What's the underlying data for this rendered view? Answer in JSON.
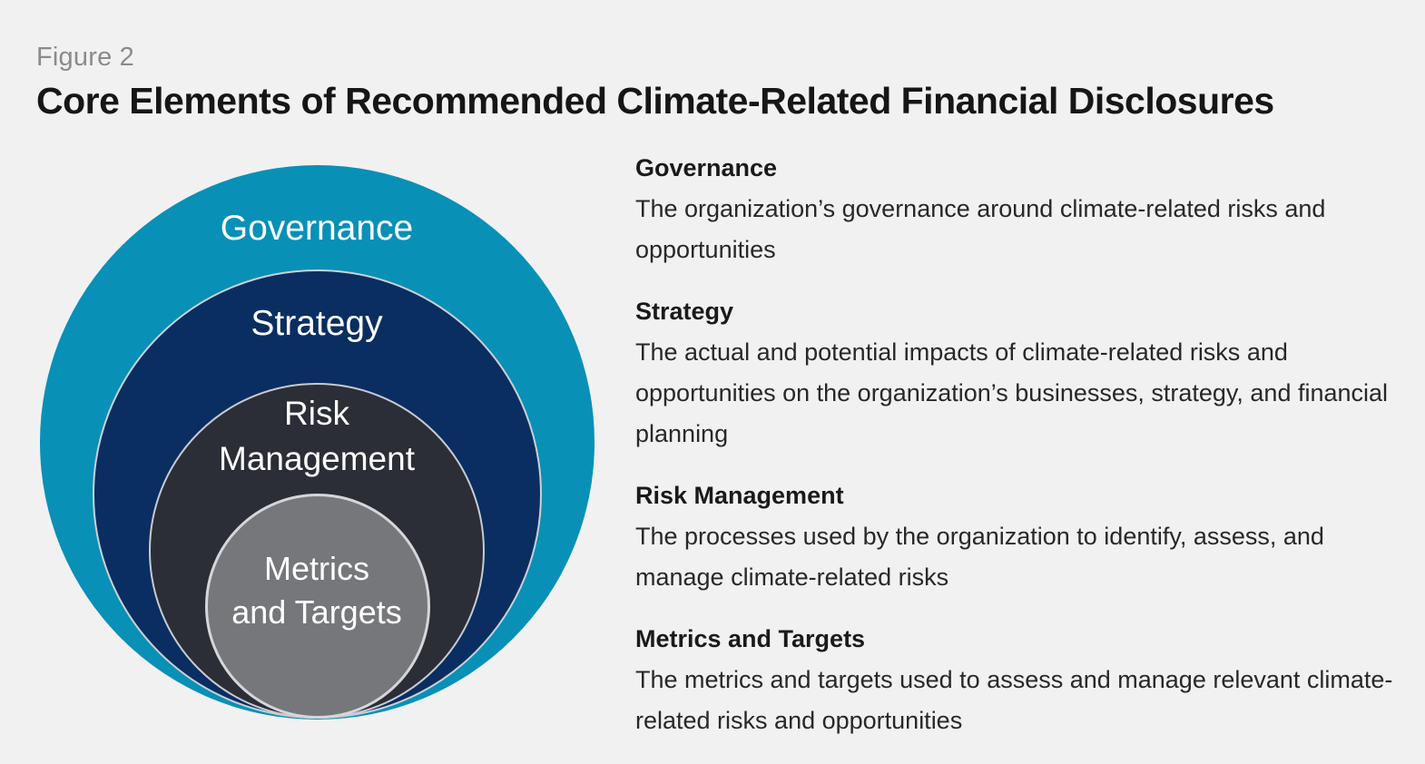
{
  "page": {
    "background_color": "#f1f1f2"
  },
  "figure": {
    "label": "Figure 2",
    "title": "Core Elements of Recommended Climate-Related Financial Disclosures"
  },
  "diagram": {
    "type": "nested-circles",
    "rings": [
      {
        "id": "governance",
        "label": "Governance",
        "color": "#0890b7",
        "text_color": "#ffffff"
      },
      {
        "id": "strategy",
        "label": "Strategy",
        "color": "#0a2e61",
        "text_color": "#ffffff",
        "border_color": "#ccd0d5"
      },
      {
        "id": "risk-management",
        "label": "Risk Management",
        "line1": "Risk",
        "line2": "Management",
        "color": "#2b2e36",
        "text_color": "#ffffff",
        "border_color": "#c7cbd1"
      },
      {
        "id": "metrics-and-targets",
        "label": "Metrics and Targets",
        "line1": "Metrics",
        "line2": "and Targets",
        "color": "#76777b",
        "text_color": "#ffffff",
        "border_color": "#d4d6d9"
      }
    ]
  },
  "descriptions": [
    {
      "heading": "Governance",
      "body": "The organization’s governance around climate-related risks and opportunities"
    },
    {
      "heading": "Strategy",
      "body": "The actual and potential impacts of climate-related risks and opportunities on the organization’s businesses, strategy, and financial planning"
    },
    {
      "heading": "Risk Management",
      "body": "The processes used by the organization to identify, assess, and manage climate-related risks"
    },
    {
      "heading": "Metrics and Targets",
      "body": "The metrics and targets used to assess and manage relevant climate-related risks and opportunities"
    }
  ]
}
